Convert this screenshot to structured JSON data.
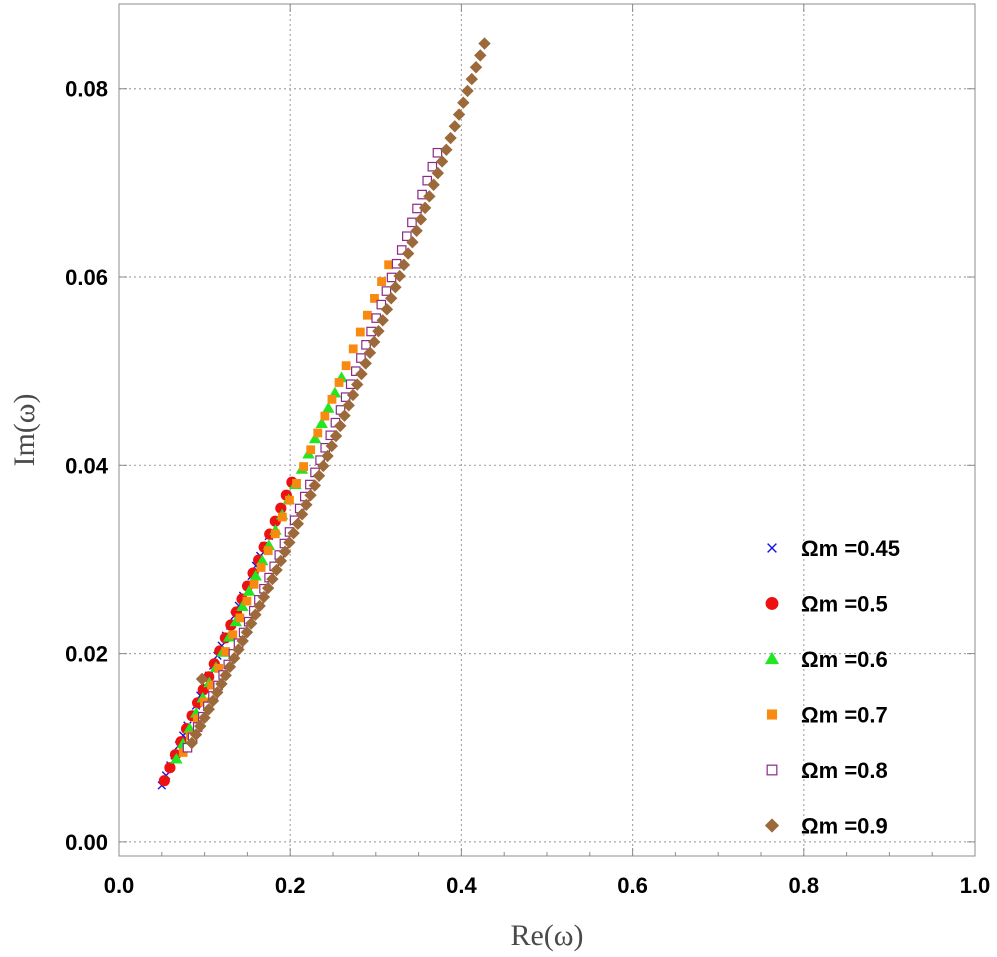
{
  "chart_data": {
    "type": "scatter",
    "title": "",
    "xlabel": "Re(ω)",
    "ylabel": "Im(ω)",
    "xlim": [
      0.0,
      1.0
    ],
    "ylim": [
      -0.0015,
      0.089
    ],
    "xticks": [
      0.0,
      0.2,
      0.4,
      0.6,
      0.8,
      1.0
    ],
    "xtick_labels": [
      "0.0",
      "0.2",
      "0.4",
      "0.6",
      "0.8",
      "1.0"
    ],
    "yticks": [
      0.0,
      0.02,
      0.04,
      0.06,
      0.08
    ],
    "ytick_labels": [
      "0.00",
      "0.02",
      "0.04",
      "0.06",
      "0.08"
    ],
    "grid": true,
    "legend_position": "right",
    "series": [
      {
        "name": "Ωm =0.45",
        "marker": "x",
        "color": "#1414e6",
        "start": [
          0.05,
          0.006
        ],
        "end": [
          0.175,
          0.0325
        ],
        "count": 26,
        "curve": 0.0
      },
      {
        "name": "Ωm =0.5",
        "marker": "circle",
        "color": "#ee1111",
        "start": [
          0.053,
          0.0065
        ],
        "end": [
          0.202,
          0.0382
        ],
        "count": 24,
        "curve": 0.0
      },
      {
        "name": "Ωm =0.6",
        "marker": "triangle",
        "color": "#22e622",
        "start": [
          0.067,
          0.0088
        ],
        "end": [
          0.26,
          0.0493
        ],
        "count": 26,
        "curve": 0.0
      },
      {
        "name": "Ωm =0.7",
        "marker": "square",
        "color": "#f88a10",
        "start": [
          0.075,
          0.0095
        ],
        "end": [
          0.315,
          0.0613
        ],
        "count": 30,
        "curve": 0.0
      },
      {
        "name": "Ωm =0.8",
        "marker": "open-square",
        "color": "#8a2a8a",
        "start": [
          0.08,
          0.01
        ],
        "end": [
          0.372,
          0.0732
        ],
        "count": 50,
        "curve": 0.006
      },
      {
        "name": "Ωm =0.9",
        "marker": "diamond",
        "color": "#9c6a3a",
        "start": [
          0.085,
          0.0105
        ],
        "end": [
          0.427,
          0.0848
        ],
        "count": 70,
        "curve": 0.008,
        "extra_points": [
          [
            0.097,
            0.0173
          ]
        ]
      }
    ]
  }
}
